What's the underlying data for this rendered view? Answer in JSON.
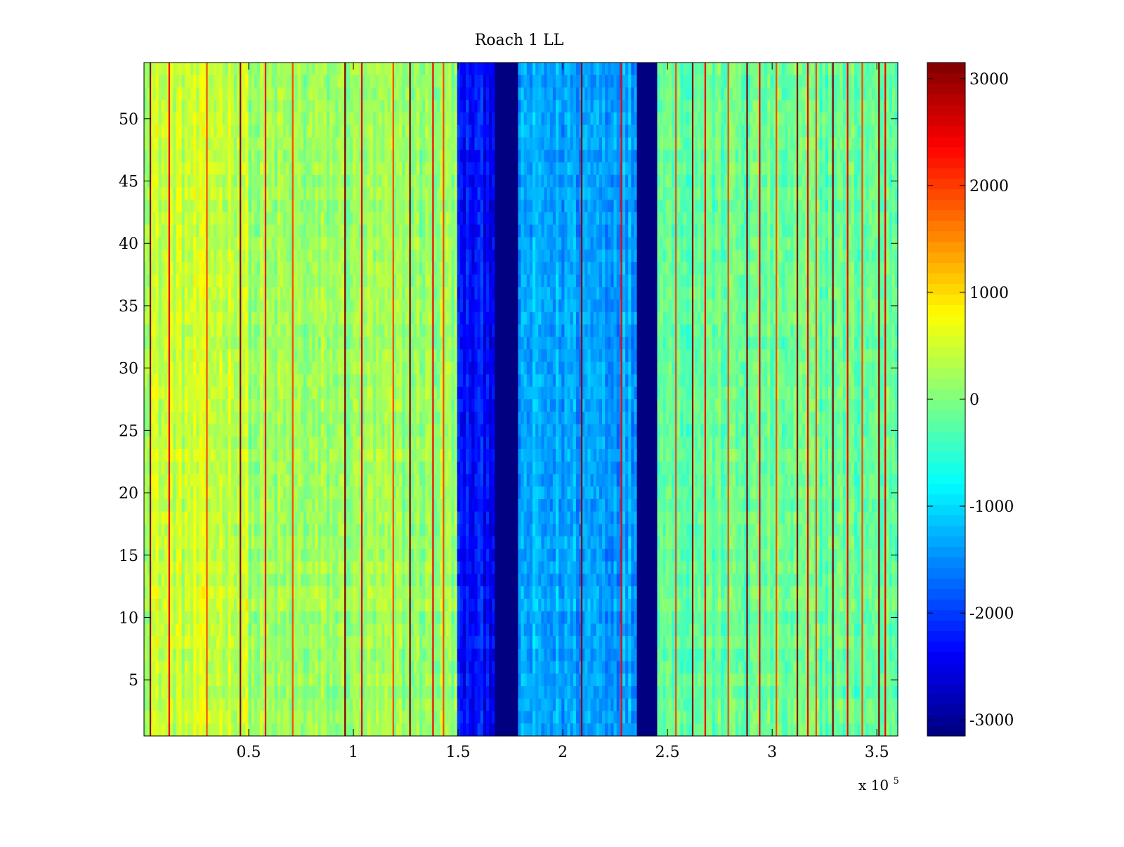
{
  "chart_data": {
    "type": "heatmap",
    "title": "Roach 1 LL",
    "xlabel": "",
    "ylabel": "",
    "x_multiplier_label": {
      "base": "x 10",
      "exp": "5"
    },
    "xlim": [
      0,
      360000
    ],
    "ylim": [
      0.5,
      54.5
    ],
    "x_ticks": [
      {
        "value": 50000,
        "label": "0.5"
      },
      {
        "value": 100000,
        "label": "1"
      },
      {
        "value": 150000,
        "label": "1.5"
      },
      {
        "value": 200000,
        "label": "2"
      },
      {
        "value": 250000,
        "label": "2.5"
      },
      {
        "value": 300000,
        "label": "3"
      },
      {
        "value": 350000,
        "label": "3.5"
      }
    ],
    "y_ticks": [
      {
        "value": 5,
        "label": "5"
      },
      {
        "value": 10,
        "label": "10"
      },
      {
        "value": 15,
        "label": "15"
      },
      {
        "value": 20,
        "label": "20"
      },
      {
        "value": 25,
        "label": "25"
      },
      {
        "value": 30,
        "label": "30"
      },
      {
        "value": 35,
        "label": "35"
      },
      {
        "value": 40,
        "label": "40"
      },
      {
        "value": 45,
        "label": "45"
      },
      {
        "value": 50,
        "label": "50"
      }
    ],
    "colorbar": {
      "colormap": "jet",
      "range": [
        -3150,
        3150
      ],
      "ticks": [
        {
          "value": 3000,
          "label": "3000"
        },
        {
          "value": 2000,
          "label": "2000"
        },
        {
          "value": 1000,
          "label": "1000"
        },
        {
          "value": 0,
          "label": "0"
        },
        {
          "value": -1000,
          "label": "-1000"
        },
        {
          "value": -2000,
          "label": "-2000"
        },
        {
          "value": -3000,
          "label": "-3000"
        }
      ]
    },
    "rows": 54,
    "column_bands": [
      {
        "x_start": 0,
        "x_end": 50000,
        "mean_value": 450
      },
      {
        "x_start": 50000,
        "x_end": 150000,
        "mean_value": 150
      },
      {
        "x_start": 150000,
        "x_end": 168000,
        "mean_value": -2300
      },
      {
        "x_start": 168000,
        "x_end": 179000,
        "mean_value": -3150
      },
      {
        "x_start": 179000,
        "x_end": 235000,
        "mean_value": -1350
      },
      {
        "x_start": 235000,
        "x_end": 245000,
        "mean_value": -3150
      },
      {
        "x_start": 245000,
        "x_end": 360000,
        "mean_value": -150
      }
    ],
    "outlier_columns_x": [
      3000,
      12000,
      30000,
      46000,
      58000,
      71000,
      96000,
      104000,
      119000,
      127000,
      138000,
      143000,
      209000,
      228000,
      254000,
      262000,
      268000,
      279000,
      288000,
      294000,
      302000,
      312000,
      317000,
      321000,
      329000,
      336000,
      343000,
      351000,
      354000
    ]
  },
  "colors": {
    "background": "#ffffff",
    "axis": "#000000"
  }
}
